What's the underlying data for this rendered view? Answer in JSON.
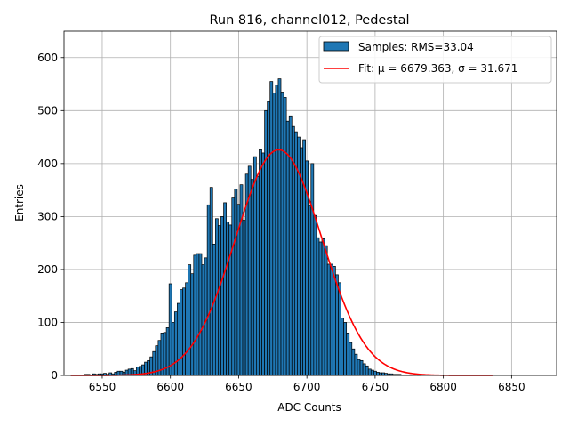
{
  "chart_data": {
    "type": "bar",
    "title": "Run 816, channel012, Pedestal",
    "xlabel": "ADC Counts",
    "ylabel": "Entries",
    "xlim": [
      6522,
      6883
    ],
    "ylim": [
      0,
      650
    ],
    "grid": true,
    "xticks": [
      6550,
      6600,
      6650,
      6700,
      6750,
      6800,
      6850
    ],
    "yticks": [
      0,
      100,
      200,
      300,
      400,
      500,
      600
    ],
    "bin_width": 2,
    "bin_start": 6527,
    "counts": [
      1,
      0,
      0,
      1,
      0,
      2,
      2,
      1,
      3,
      2,
      3,
      3,
      4,
      2,
      5,
      3,
      6,
      8,
      8,
      6,
      10,
      12,
      13,
      9,
      16,
      17,
      20,
      25,
      28,
      35,
      45,
      56,
      66,
      80,
      81,
      90,
      173,
      100,
      120,
      136,
      162,
      165,
      175,
      209,
      192,
      227,
      230,
      230,
      209,
      222,
      322,
      355,
      248,
      296,
      283,
      300,
      326,
      290,
      284,
      335,
      352,
      323,
      360,
      293,
      380,
      395,
      370,
      413,
      376,
      426,
      420,
      500,
      517,
      555,
      533,
      548,
      560,
      535,
      525,
      480,
      490,
      470,
      460,
      450,
      430,
      445,
      405,
      320,
      400,
      302,
      260,
      252,
      258,
      245,
      210,
      210,
      206,
      190,
      175,
      108,
      100,
      80,
      62,
      50,
      40,
      30,
      28,
      22,
      18,
      12,
      10,
      8,
      6,
      5,
      5,
      4,
      3,
      3,
      2,
      2,
      2,
      1,
      1,
      1,
      1,
      0,
      0,
      1,
      0,
      0,
      0,
      0,
      0,
      0,
      0,
      1,
      0,
      0,
      0,
      0,
      0,
      0,
      0,
      0,
      0,
      0,
      0,
      0,
      0,
      0,
      0,
      0,
      0,
      0,
      0,
      0,
      0,
      0,
      0,
      0,
      0,
      0,
      0,
      0,
      0,
      0,
      0,
      0,
      0,
      0
    ],
    "series": [
      {
        "name": "Samples: RMS=33.04",
        "type": "histogram",
        "color": "#1f77b4"
      },
      {
        "name": "Fit: μ = 6679.363, σ = 31.671",
        "type": "gaussian",
        "mu": 6679.363,
        "sigma": 31.671,
        "amplitude": 426,
        "x_range": [
          6527,
          6836
        ],
        "color": "#ff0000"
      }
    ],
    "legend": [
      "Samples: RMS=33.04",
      "Fit: μ = 6679.363, σ = 31.671"
    ],
    "legend_position": "top-right"
  }
}
